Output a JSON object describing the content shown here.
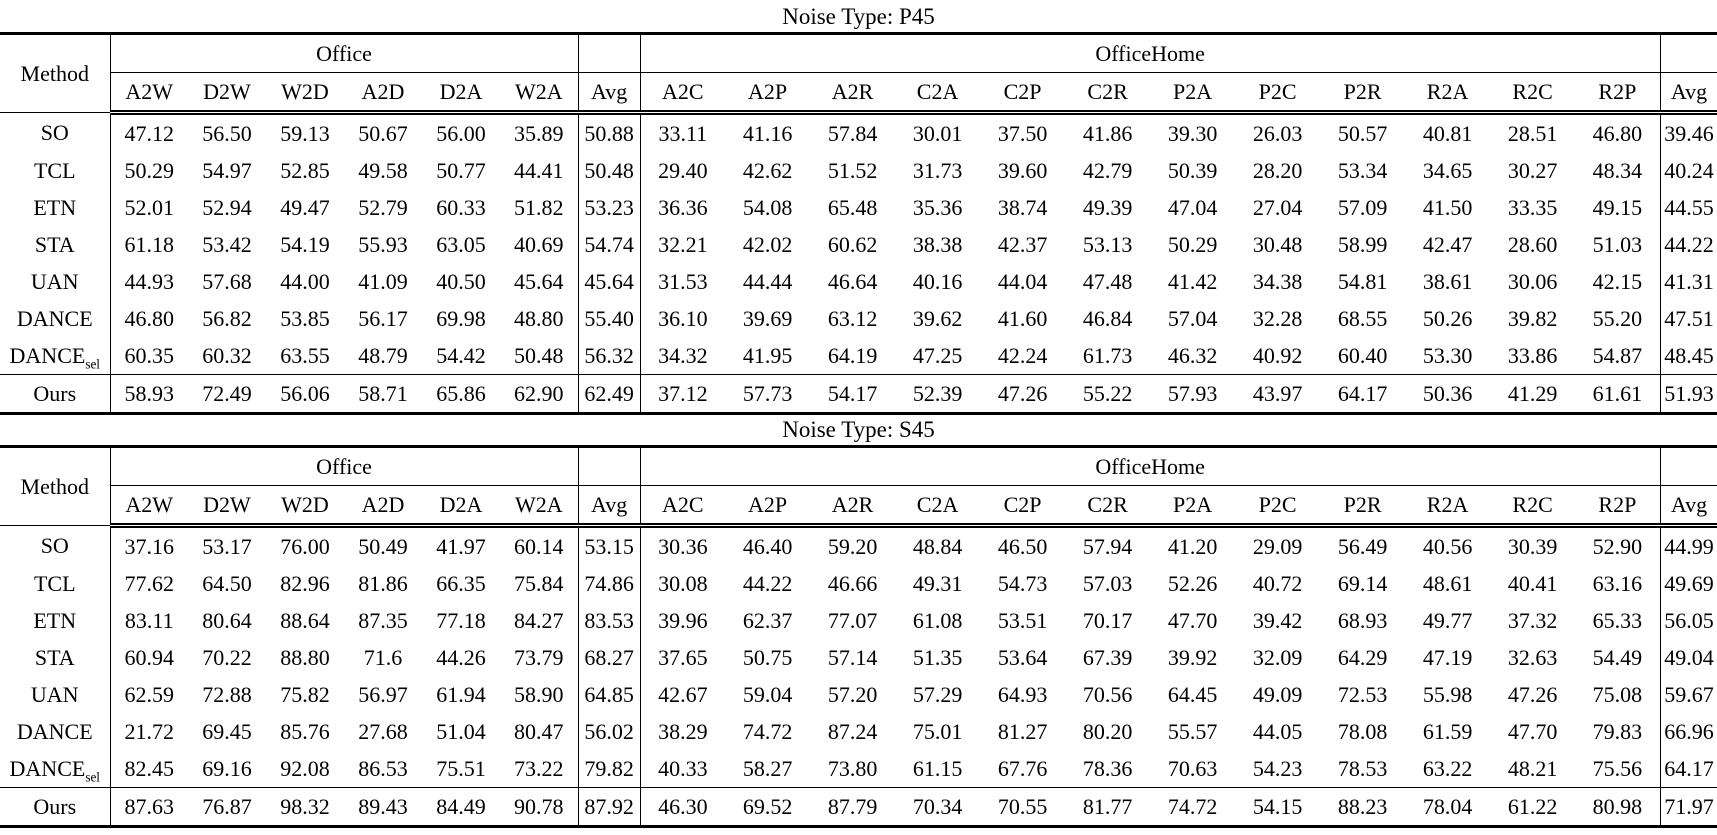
{
  "page": {
    "tables": [
      {
        "caption": "Noise Type: P45",
        "header": {
          "method": "Method",
          "office_group": "Office",
          "officehome_group": "OfficeHome",
          "avg": "Avg",
          "office_cols": [
            "A2W",
            "D2W",
            "W2D",
            "A2D",
            "D2A",
            "W2A"
          ],
          "officehome_cols": [
            "A2C",
            "A2P",
            "A2R",
            "C2A",
            "C2P",
            "C2R",
            "P2A",
            "P2C",
            "P2R",
            "R2A",
            "R2C",
            "R2P"
          ]
        },
        "rows": [
          {
            "method": "SO",
            "method_sub": "",
            "office": [
              "47.12",
              "56.50",
              "59.13",
              "50.67",
              "56.00",
              "35.89"
            ],
            "office_bold": [
              0,
              0,
              0,
              0,
              0,
              0
            ],
            "office_avg": "50.88",
            "office_avg_bold": false,
            "officehome": [
              "33.11",
              "41.16",
              "57.84",
              "30.01",
              "37.50",
              "41.86",
              "39.30",
              "26.03",
              "50.57",
              "40.81",
              "28.51",
              "46.80"
            ],
            "officehome_bold": [
              0,
              0,
              0,
              0,
              0,
              0,
              0,
              0,
              0,
              0,
              0,
              0
            ],
            "officehome_avg": "39.46",
            "officehome_avg_bold": false
          },
          {
            "method": "TCL",
            "method_sub": "",
            "office": [
              "50.29",
              "54.97",
              "52.85",
              "49.58",
              "50.77",
              "44.41"
            ],
            "office_bold": [
              0,
              0,
              0,
              0,
              0,
              0
            ],
            "office_avg": "50.48",
            "office_avg_bold": false,
            "officehome": [
              "29.40",
              "42.62",
              "51.52",
              "31.73",
              "39.60",
              "42.79",
              "50.39",
              "28.20",
              "53.34",
              "34.65",
              "30.27",
              "48.34"
            ],
            "officehome_bold": [
              0,
              0,
              0,
              0,
              0,
              0,
              0,
              0,
              0,
              0,
              0,
              0
            ],
            "officehome_avg": "40.24",
            "officehome_avg_bold": false
          },
          {
            "method": "ETN",
            "method_sub": "",
            "office": [
              "52.01",
              "52.94",
              "49.47",
              "52.79",
              "60.33",
              "51.82"
            ],
            "office_bold": [
              0,
              0,
              0,
              0,
              0,
              0
            ],
            "office_avg": "53.23",
            "office_avg_bold": false,
            "officehome": [
              "36.36",
              "54.08",
              "65.48",
              "35.36",
              "38.74",
              "49.39",
              "47.04",
              "27.04",
              "57.09",
              "41.50",
              "33.35",
              "49.15"
            ],
            "officehome_bold": [
              0,
              0,
              1,
              0,
              0,
              0,
              0,
              0,
              0,
              0,
              0,
              0
            ],
            "officehome_avg": "44.55",
            "officehome_avg_bold": false
          },
          {
            "method": "STA",
            "method_sub": "",
            "office": [
              "61.18",
              "53.42",
              "54.19",
              "55.93",
              "63.05",
              "40.69"
            ],
            "office_bold": [
              1,
              0,
              0,
              0,
              0,
              0
            ],
            "office_avg": "54.74",
            "office_avg_bold": false,
            "officehome": [
              "32.21",
              "42.02",
              "60.62",
              "38.38",
              "42.37",
              "53.13",
              "50.29",
              "30.48",
              "58.99",
              "42.47",
              "28.60",
              "51.03"
            ],
            "officehome_bold": [
              0,
              0,
              0,
              0,
              0,
              0,
              0,
              0,
              0,
              0,
              0,
              0
            ],
            "officehome_avg": "44.22",
            "officehome_avg_bold": false
          },
          {
            "method": "UAN",
            "method_sub": "",
            "office": [
              "44.93",
              "57.68",
              "44.00",
              "41.09",
              "40.50",
              "45.64"
            ],
            "office_bold": [
              0,
              0,
              0,
              0,
              0,
              0
            ],
            "office_avg": "45.64",
            "office_avg_bold": false,
            "officehome": [
              "31.53",
              "44.44",
              "46.64",
              "40.16",
              "44.04",
              "47.48",
              "41.42",
              "34.38",
              "54.81",
              "38.61",
              "30.06",
              "42.15"
            ],
            "officehome_bold": [
              0,
              0,
              0,
              0,
              0,
              0,
              0,
              0,
              0,
              0,
              0,
              0
            ],
            "officehome_avg": "41.31",
            "officehome_avg_bold": false
          },
          {
            "method": "DANCE",
            "method_sub": "",
            "office": [
              "46.80",
              "56.82",
              "53.85",
              "56.17",
              "69.98",
              "48.80"
            ],
            "office_bold": [
              0,
              0,
              0,
              0,
              1,
              0
            ],
            "office_avg": "55.40",
            "office_avg_bold": false,
            "officehome": [
              "36.10",
              "39.69",
              "63.12",
              "39.62",
              "41.60",
              "46.84",
              "57.04",
              "32.28",
              "68.55",
              "50.26",
              "39.82",
              "55.20"
            ],
            "officehome_bold": [
              0,
              0,
              0,
              0,
              0,
              0,
              0,
              0,
              1,
              0,
              0,
              0
            ],
            "officehome_avg": "47.51",
            "officehome_avg_bold": false
          },
          {
            "method": "DANCE",
            "method_sub": "sel",
            "office": [
              "60.35",
              "60.32",
              "63.55",
              "48.79",
              "54.42",
              "50.48"
            ],
            "office_bold": [
              0,
              0,
              1,
              0,
              0,
              0
            ],
            "office_avg": "56.32",
            "office_avg_bold": false,
            "officehome": [
              "34.32",
              "41.95",
              "64.19",
              "47.25",
              "42.24",
              "61.73",
              "46.32",
              "40.92",
              "60.40",
              "53.30",
              "33.86",
              "54.87"
            ],
            "officehome_bold": [
              0,
              0,
              0,
              0,
              0,
              1,
              0,
              0,
              0,
              1,
              0,
              0
            ],
            "officehome_avg": "48.45",
            "officehome_avg_bold": false
          },
          {
            "method": "Ours",
            "method_sub": "",
            "office": [
              "58.93",
              "72.49",
              "56.06",
              "58.71",
              "65.86",
              "62.90"
            ],
            "office_bold": [
              0,
              1,
              0,
              1,
              0,
              1
            ],
            "office_avg": "62.49",
            "office_avg_bold": true,
            "officehome": [
              "37.12",
              "57.73",
              "54.17",
              "52.39",
              "47.26",
              "55.22",
              "57.93",
              "43.97",
              "64.17",
              "50.36",
              "41.29",
              "61.61"
            ],
            "officehome_bold": [
              1,
              1,
              0,
              1,
              1,
              0,
              1,
              1,
              0,
              0,
              1,
              1
            ],
            "officehome_avg": "51.93",
            "officehome_avg_bold": true
          }
        ]
      },
      {
        "caption": "Noise Type: S45",
        "header": {
          "method": "Method",
          "office_group": "Office",
          "officehome_group": "OfficeHome",
          "avg": "Avg",
          "office_cols": [
            "A2W",
            "D2W",
            "W2D",
            "A2D",
            "D2A",
            "W2A"
          ],
          "officehome_cols": [
            "A2C",
            "A2P",
            "A2R",
            "C2A",
            "C2P",
            "C2R",
            "P2A",
            "P2C",
            "P2R",
            "R2A",
            "R2C",
            "R2P"
          ]
        },
        "rows": [
          {
            "method": "SO",
            "method_sub": "",
            "office": [
              "37.16",
              "53.17",
              "76.00",
              "50.49",
              "41.97",
              "60.14"
            ],
            "office_bold": [
              0,
              0,
              0,
              0,
              0,
              0
            ],
            "office_avg": "53.15",
            "office_avg_bold": false,
            "officehome": [
              "30.36",
              "46.40",
              "59.20",
              "48.84",
              "46.50",
              "57.94",
              "41.20",
              "29.09",
              "56.49",
              "40.56",
              "30.39",
              "52.90"
            ],
            "officehome_bold": [
              0,
              0,
              0,
              0,
              0,
              0,
              0,
              0,
              0,
              0,
              0,
              0
            ],
            "officehome_avg": "44.99",
            "officehome_avg_bold": false
          },
          {
            "method": "TCL",
            "method_sub": "",
            "office": [
              "77.62",
              "64.50",
              "82.96",
              "81.86",
              "66.35",
              "75.84"
            ],
            "office_bold": [
              0,
              0,
              0,
              0,
              0,
              0
            ],
            "office_avg": "74.86",
            "office_avg_bold": false,
            "officehome": [
              "30.08",
              "44.22",
              "46.66",
              "49.31",
              "54.73",
              "57.03",
              "52.26",
              "40.72",
              "69.14",
              "48.61",
              "40.41",
              "63.16"
            ],
            "officehome_bold": [
              0,
              0,
              0,
              0,
              0,
              0,
              0,
              0,
              0,
              0,
              0,
              0
            ],
            "officehome_avg": "49.69",
            "officehome_avg_bold": false
          },
          {
            "method": "ETN",
            "method_sub": "",
            "office": [
              "83.11",
              "80.64",
              "88.64",
              "87.35",
              "77.18",
              "84.27"
            ],
            "office_bold": [
              0,
              1,
              0,
              0,
              0,
              0
            ],
            "office_avg": "83.53",
            "office_avg_bold": false,
            "officehome": [
              "39.96",
              "62.37",
              "77.07",
              "61.08",
              "53.51",
              "70.17",
              "47.70",
              "39.42",
              "68.93",
              "49.77",
              "37.32",
              "65.33"
            ],
            "officehome_bold": [
              0,
              0,
              0,
              0,
              0,
              0,
              0,
              0,
              0,
              0,
              0,
              0
            ],
            "officehome_avg": "56.05",
            "officehome_avg_bold": false
          },
          {
            "method": "STA",
            "method_sub": "",
            "office": [
              "60.94",
              "70.22",
              "88.80",
              "71.6",
              "44.26",
              "73.79"
            ],
            "office_bold": [
              0,
              0,
              0,
              0,
              0,
              0
            ],
            "office_avg": "68.27",
            "office_avg_bold": false,
            "officehome": [
              "37.65",
              "50.75",
              "57.14",
              "51.35",
              "53.64",
              "67.39",
              "39.92",
              "32.09",
              "64.29",
              "47.19",
              "32.63",
              "54.49"
            ],
            "officehome_bold": [
              0,
              0,
              0,
              0,
              0,
              0,
              0,
              0,
              0,
              0,
              0,
              0
            ],
            "officehome_avg": "49.04",
            "officehome_avg_bold": false
          },
          {
            "method": "UAN",
            "method_sub": "",
            "office": [
              "62.59",
              "72.88",
              "75.82",
              "56.97",
              "61.94",
              "58.90"
            ],
            "office_bold": [
              0,
              0,
              0,
              0,
              0,
              0
            ],
            "office_avg": "64.85",
            "office_avg_bold": false,
            "officehome": [
              "42.67",
              "59.04",
              "57.20",
              "57.29",
              "64.93",
              "70.56",
              "64.45",
              "49.09",
              "72.53",
              "55.98",
              "47.26",
              "75.08"
            ],
            "officehome_bold": [
              0,
              0,
              0,
              0,
              0,
              0,
              0,
              0,
              0,
              0,
              0,
              0
            ],
            "officehome_avg": "59.67",
            "officehome_avg_bold": false
          },
          {
            "method": "DANCE",
            "method_sub": "",
            "office": [
              "21.72",
              "69.45",
              "85.76",
              "27.68",
              "51.04",
              "80.47"
            ],
            "office_bold": [
              0,
              0,
              0,
              0,
              0,
              0
            ],
            "office_avg": "56.02",
            "office_avg_bold": false,
            "officehome": [
              "38.29",
              "74.72",
              "87.24",
              "75.01",
              "81.27",
              "80.20",
              "55.57",
              "44.05",
              "78.08",
              "61.59",
              "47.70",
              "79.83"
            ],
            "officehome_bold": [
              0,
              1,
              0,
              1,
              1,
              0,
              0,
              0,
              0,
              0,
              0,
              0
            ],
            "officehome_avg": "66.96",
            "officehome_avg_bold": false
          },
          {
            "method": "DANCE",
            "method_sub": "sel",
            "office": [
              "82.45",
              "69.16",
              "92.08",
              "86.53",
              "75.51",
              "73.22"
            ],
            "office_bold": [
              0,
              0,
              0,
              0,
              0,
              0
            ],
            "office_avg": "79.82",
            "office_avg_bold": false,
            "officehome": [
              "40.33",
              "58.27",
              "73.80",
              "61.15",
              "67.76",
              "78.36",
              "70.63",
              "54.23",
              "78.53",
              "63.22",
              "48.21",
              "75.56"
            ],
            "officehome_bold": [
              0,
              0,
              0,
              0,
              0,
              0,
              0,
              1,
              0,
              0,
              0,
              0
            ],
            "officehome_avg": "64.17",
            "officehome_avg_bold": false
          },
          {
            "method": "Ours",
            "method_sub": "",
            "office": [
              "87.63",
              "76.87",
              "98.32",
              "89.43",
              "84.49",
              "90.78"
            ],
            "office_bold": [
              1,
              0,
              1,
              1,
              1,
              1
            ],
            "office_avg": "87.92",
            "office_avg_bold": true,
            "officehome": [
              "46.30",
              "69.52",
              "87.79",
              "70.34",
              "70.55",
              "81.77",
              "74.72",
              "54.15",
              "88.23",
              "78.04",
              "61.22",
              "80.98"
            ],
            "officehome_bold": [
              1,
              0,
              1,
              0,
              0,
              1,
              1,
              0,
              1,
              1,
              1,
              1
            ],
            "officehome_avg": "71.97",
            "officehome_avg_bold": true
          }
        ]
      }
    ]
  }
}
